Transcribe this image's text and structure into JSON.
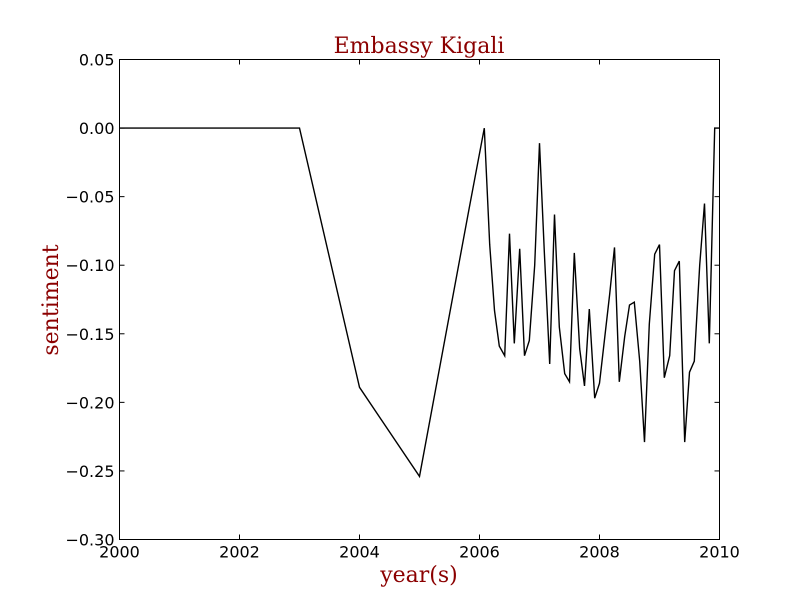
{
  "chart_data": {
    "type": "line",
    "title": "Embassy Kigali",
    "xlabel": "year(s)",
    "ylabel": "sentiment",
    "xlim": [
      2000,
      2010
    ],
    "ylim": [
      -0.3,
      0.05
    ],
    "x_ticks": [
      2000,
      2002,
      2004,
      2006,
      2008,
      2010
    ],
    "x_tick_labels": [
      "2000",
      "2002",
      "2004",
      "2006",
      "2008",
      "2010"
    ],
    "y_ticks": [
      0.05,
      0.0,
      -0.05,
      -0.1,
      -0.15,
      -0.2,
      -0.25,
      -0.3
    ],
    "y_tick_labels": [
      "0.05",
      "0.00",
      "−0.05",
      "−0.10",
      "−0.15",
      "−0.20",
      "−0.25",
      "−0.30"
    ],
    "grid": false,
    "title_color": "#8b0000",
    "label_color": "#8b0000",
    "line_color": "#000000",
    "series": [
      {
        "x": [
          2000.0,
          2003.0,
          2004.0,
          2005.0,
          2005.83,
          2006.08,
          2006.17,
          2006.25,
          2006.33,
          2006.42,
          2006.5,
          2006.58,
          2006.67,
          2006.75,
          2006.83,
          2006.92,
          2007.0,
          2007.08,
          2007.17,
          2007.25,
          2007.33,
          2007.42,
          2007.5,
          2007.58,
          2007.67,
          2007.75,
          2007.83,
          2007.92,
          2008.0,
          2008.17,
          2008.25,
          2008.33,
          2008.42,
          2008.5,
          2008.58,
          2008.67,
          2008.75,
          2008.83,
          2008.92,
          2009.0,
          2009.08,
          2009.17,
          2009.25,
          2009.33,
          2009.42,
          2009.5,
          2009.58,
          2009.67,
          2009.75,
          2009.83,
          2009.92,
          2010.0
        ],
        "y": [
          0.0,
          0.0,
          -0.189,
          -0.254,
          -0.058,
          0.0,
          -0.085,
          -0.133,
          -0.159,
          -0.166,
          -0.077,
          -0.157,
          -0.088,
          -0.166,
          -0.155,
          -0.1,
          -0.011,
          -0.09,
          -0.172,
          -0.063,
          -0.145,
          -0.179,
          -0.185,
          -0.091,
          -0.161,
          -0.188,
          -0.132,
          -0.197,
          -0.186,
          -0.121,
          -0.087,
          -0.185,
          -0.152,
          -0.129,
          -0.127,
          -0.17,
          -0.229,
          -0.143,
          -0.092,
          -0.085,
          -0.182,
          -0.166,
          -0.104,
          -0.097,
          -0.229,
          -0.178,
          -0.17,
          -0.1,
          -0.055,
          -0.157,
          0.0,
          0.0
        ]
      }
    ]
  }
}
